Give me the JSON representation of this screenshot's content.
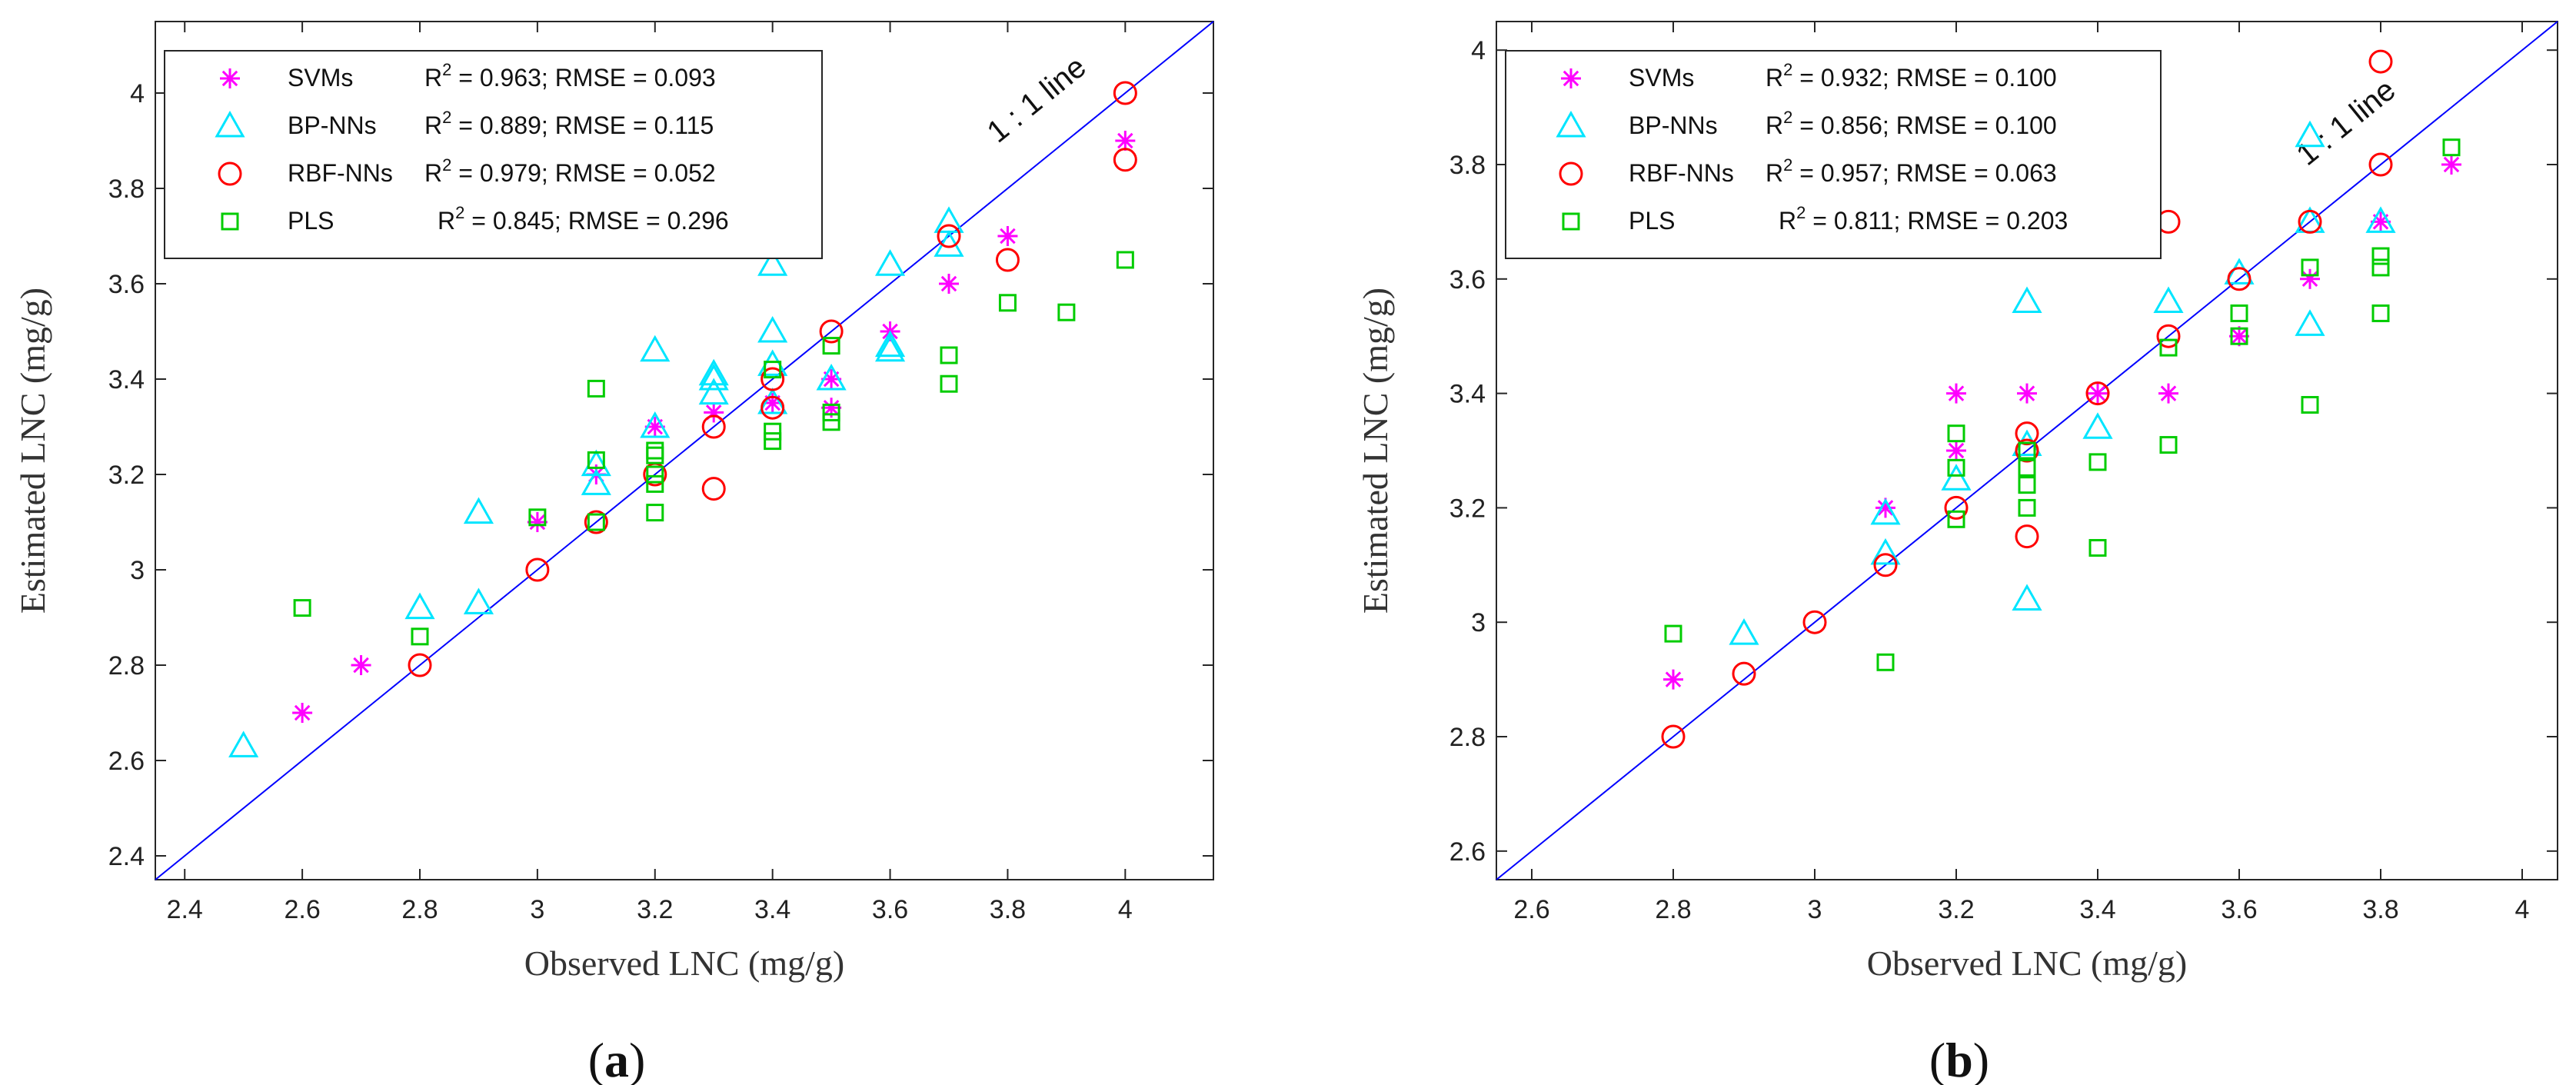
{
  "colors": {
    "SVMs": "#ff00ff",
    "BP-NNs": "#00e5ff",
    "RBF-NNs": "#ff0000",
    "PLS": "#00cc00",
    "line": "#0000ff"
  },
  "chart_data": [
    {
      "type": "scatter",
      "caption": "a",
      "xlabel": "Observed LNC (mg/g)",
      "ylabel": "Estimated LNC (mg/g)",
      "xlim": [
        2.35,
        4.15
      ],
      "ylim": [
        2.35,
        4.15
      ],
      "xticks": [
        "2.4",
        "2.6",
        "2.8",
        "3",
        "3.2",
        "3.4",
        "3.6",
        "3.8",
        "4"
      ],
      "yticks": [
        "2.4",
        "2.6",
        "2.8",
        "3",
        "3.2",
        "3.4",
        "3.6",
        "3.8",
        "4"
      ],
      "line_label": "1 : 1 line",
      "legend_position": "top-left",
      "series": [
        {
          "name": "SVMs",
          "stats": "= 0.963;   RMSE = 0.093",
          "marker": "star",
          "points": [
            [
              2.6,
              2.7
            ],
            [
              2.7,
              2.8
            ],
            [
              3.0,
              3.1
            ],
            [
              3.1,
              3.2
            ],
            [
              3.2,
              3.3
            ],
            [
              3.3,
              3.33
            ],
            [
              3.4,
              3.35
            ],
            [
              3.5,
              3.34
            ],
            [
              3.5,
              3.4
            ],
            [
              3.6,
              3.5
            ],
            [
              3.7,
              3.6
            ],
            [
              3.8,
              3.7
            ],
            [
              4.0,
              3.9
            ]
          ]
        },
        {
          "name": "BP-NNs",
          "stats": "= 0.889;   RMSE = 0.115",
          "marker": "triangle",
          "points": [
            [
              2.5,
              2.63
            ],
            [
              2.8,
              2.92
            ],
            [
              2.9,
              3.12
            ],
            [
              2.9,
              2.93
            ],
            [
              3.1,
              3.18
            ],
            [
              3.1,
              3.22
            ],
            [
              3.2,
              3.46
            ],
            [
              3.2,
              3.3
            ],
            [
              3.3,
              3.41
            ],
            [
              3.3,
              3.4
            ],
            [
              3.3,
              3.37
            ],
            [
              3.4,
              3.64
            ],
            [
              3.4,
              3.5
            ],
            [
              3.4,
              3.43
            ],
            [
              3.4,
              3.35
            ],
            [
              3.5,
              3.4
            ],
            [
              3.6,
              3.64
            ],
            [
              3.6,
              3.47
            ],
            [
              3.6,
              3.46
            ],
            [
              3.7,
              3.73
            ],
            [
              3.7,
              3.68
            ]
          ]
        },
        {
          "name": "RBF-NNs",
          "stats": "= 0.979;   RMSE = 0.052",
          "marker": "circle",
          "points": [
            [
              2.8,
              2.8
            ],
            [
              3.0,
              3.0
            ],
            [
              3.1,
              3.1
            ],
            [
              3.2,
              3.2
            ],
            [
              3.3,
              3.3
            ],
            [
              3.3,
              3.17
            ],
            [
              3.4,
              3.4
            ],
            [
              3.4,
              3.34
            ],
            [
              3.5,
              3.5
            ],
            [
              3.7,
              3.7
            ],
            [
              3.8,
              3.65
            ],
            [
              4.0,
              4.0
            ],
            [
              4.0,
              3.86
            ]
          ]
        },
        {
          "name": "PLS",
          "stats": "= 0.845;   RMSE = 0.296",
          "marker": "square",
          "points": [
            [
              2.6,
              2.92
            ],
            [
              2.8,
              2.86
            ],
            [
              3.0,
              3.11
            ],
            [
              3.1,
              3.38
            ],
            [
              3.1,
              3.23
            ],
            [
              3.1,
              3.1
            ],
            [
              3.2,
              3.25
            ],
            [
              3.2,
              3.24
            ],
            [
              3.2,
              3.2
            ],
            [
              3.2,
              3.18
            ],
            [
              3.2,
              3.12
            ],
            [
              3.4,
              3.42
            ],
            [
              3.4,
              3.29
            ],
            [
              3.4,
              3.27
            ],
            [
              3.5,
              3.47
            ],
            [
              3.5,
              3.33
            ],
            [
              3.5,
              3.31
            ],
            [
              3.7,
              3.45
            ],
            [
              3.7,
              3.39
            ],
            [
              3.8,
              3.56
            ],
            [
              3.9,
              3.54
            ],
            [
              4.0,
              3.65
            ]
          ]
        }
      ]
    },
    {
      "type": "scatter",
      "caption": "b",
      "xlabel": "Observed LNC (mg/g)",
      "ylabel": "Estimated LNC (mg/g)",
      "xlim": [
        2.55,
        4.05
      ],
      "ylim": [
        2.55,
        4.05
      ],
      "xticks": [
        "2.6",
        "2.8",
        "3",
        "3.2",
        "3.4",
        "3.6",
        "3.8",
        "4"
      ],
      "yticks": [
        "2.6",
        "2.8",
        "3",
        "3.2",
        "3.4",
        "3.6",
        "3.8",
        "4"
      ],
      "line_label": "1 : 1 line",
      "legend_position": "top-left",
      "series": [
        {
          "name": "SVMs",
          "stats": "= 0.932;   RMSE = 0.100",
          "marker": "star",
          "points": [
            [
              2.8,
              2.9
            ],
            [
              3.1,
              3.2
            ],
            [
              3.2,
              3.4
            ],
            [
              3.2,
              3.3
            ],
            [
              3.3,
              3.4
            ],
            [
              3.4,
              3.4
            ],
            [
              3.5,
              3.4
            ],
            [
              3.6,
              3.5
            ],
            [
              3.7,
              3.6
            ],
            [
              3.8,
              3.7
            ],
            [
              3.9,
              3.8
            ]
          ]
        },
        {
          "name": "BP-NNs",
          "stats": "= 0.856;   RMSE = 0.100",
          "marker": "triangle",
          "points": [
            [
              2.9,
              2.98
            ],
            [
              3.1,
              3.19
            ],
            [
              3.1,
              3.12
            ],
            [
              3.2,
              3.25
            ],
            [
              3.3,
              3.56
            ],
            [
              3.3,
              3.31
            ],
            [
              3.3,
              3.04
            ],
            [
              3.4,
              3.34
            ],
            [
              3.5,
              3.56
            ],
            [
              3.6,
              3.61
            ],
            [
              3.7,
              3.85
            ],
            [
              3.7,
              3.7
            ],
            [
              3.7,
              3.52
            ],
            [
              3.8,
              3.7
            ]
          ]
        },
        {
          "name": "RBF-NNs",
          "stats": "= 0.957;   RMSE = 0.063",
          "marker": "circle",
          "points": [
            [
              2.8,
              2.8
            ],
            [
              2.9,
              2.91
            ],
            [
              3.0,
              3.0
            ],
            [
              3.1,
              3.1
            ],
            [
              3.2,
              3.2
            ],
            [
              3.3,
              3.33
            ],
            [
              3.3,
              3.3
            ],
            [
              3.3,
              3.15
            ],
            [
              3.4,
              3.4
            ],
            [
              3.5,
              3.7
            ],
            [
              3.5,
              3.5
            ],
            [
              3.6,
              3.6
            ],
            [
              3.7,
              3.7
            ],
            [
              3.8,
              3.98
            ],
            [
              3.8,
              3.8
            ]
          ]
        },
        {
          "name": "PLS",
          "stats": "= 0.811;   RMSE = 0.203",
          "marker": "square",
          "points": [
            [
              2.8,
              2.98
            ],
            [
              3.1,
              2.93
            ],
            [
              3.2,
              3.33
            ],
            [
              3.2,
              3.27
            ],
            [
              3.2,
              3.18
            ],
            [
              3.3,
              3.3
            ],
            [
              3.3,
              3.27
            ],
            [
              3.3,
              3.24
            ],
            [
              3.3,
              3.2
            ],
            [
              3.4,
              3.28
            ],
            [
              3.4,
              3.13
            ],
            [
              3.5,
              3.48
            ],
            [
              3.5,
              3.31
            ],
            [
              3.6,
              3.54
            ],
            [
              3.6,
              3.5
            ],
            [
              3.7,
              3.62
            ],
            [
              3.7,
              3.38
            ],
            [
              3.8,
              3.64
            ],
            [
              3.8,
              3.62
            ],
            [
              3.8,
              3.54
            ],
            [
              3.9,
              3.83
            ]
          ]
        }
      ]
    }
  ]
}
